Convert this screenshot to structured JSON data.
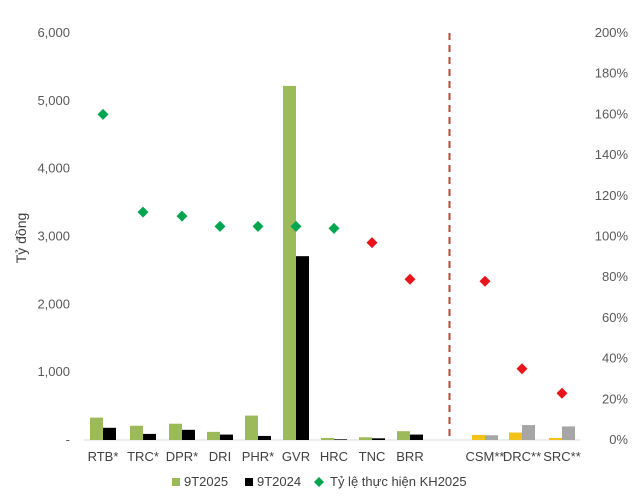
{
  "chart_data": {
    "type": "bar",
    "title": "",
    "ylabel": "Tỷ đồng",
    "ylim": [
      0,
      6000
    ],
    "y2lim": [
      0,
      200
    ],
    "left_ticks": [
      "-",
      "1,000",
      "2,000",
      "3,000",
      "4,000",
      "5,000",
      "6,000"
    ],
    "right_ticks": [
      "0%",
      "20%",
      "40%",
      "60%",
      "80%",
      "100%",
      "120%",
      "140%",
      "160%",
      "180%",
      "200%"
    ],
    "categories": [
      "RTB*",
      "TRC*",
      "DPR*",
      "DRI",
      "PHR*",
      "GVR",
      "HRC",
      "TNC",
      "BRR",
      "CSM**",
      "DRC**",
      "SRC**"
    ],
    "series": [
      {
        "name": "9T2025",
        "color": "#9BBB59",
        "values": [
          330,
          210,
          240,
          120,
          360,
          5220,
          30,
          40,
          130,
          75,
          110,
          30
        ],
        "colors": [
          "#9BBB59",
          "#9BBB59",
          "#9BBB59",
          "#9BBB59",
          "#9BBB59",
          "#9BBB59",
          "#9BBB59",
          "#9BBB59",
          "#9BBB59",
          "#F2C21B",
          "#F2C21B",
          "#F2C21B"
        ]
      },
      {
        "name": "9T2024",
        "color": "#000000",
        "values": [
          180,
          90,
          150,
          80,
          60,
          2710,
          10,
          25,
          80,
          70,
          220,
          200
        ],
        "colors": [
          "#000000",
          "#000000",
          "#000000",
          "#000000",
          "#000000",
          "#000000",
          "#000000",
          "#000000",
          "#000000",
          "#A6A6A6",
          "#A6A6A6",
          "#A6A6A6"
        ]
      },
      {
        "name": "Tỷ lệ thực hiện KH2025",
        "axis": "right",
        "marker": "diamond",
        "color": "#00A550",
        "values": [
          160,
          112,
          110,
          105,
          105,
          105,
          104,
          97,
          79,
          78,
          35,
          23
        ],
        "colors": [
          "#00A550",
          "#00A550",
          "#00A550",
          "#00A550",
          "#00A550",
          "#00A550",
          "#00A550",
          "#E8141B",
          "#E8141B",
          "#E8141B",
          "#E8141B",
          "#E8141B"
        ]
      }
    ],
    "divider_after_index": 8,
    "divider_color": "#B04A3E",
    "legend_position": "bottom",
    "grid": false
  }
}
